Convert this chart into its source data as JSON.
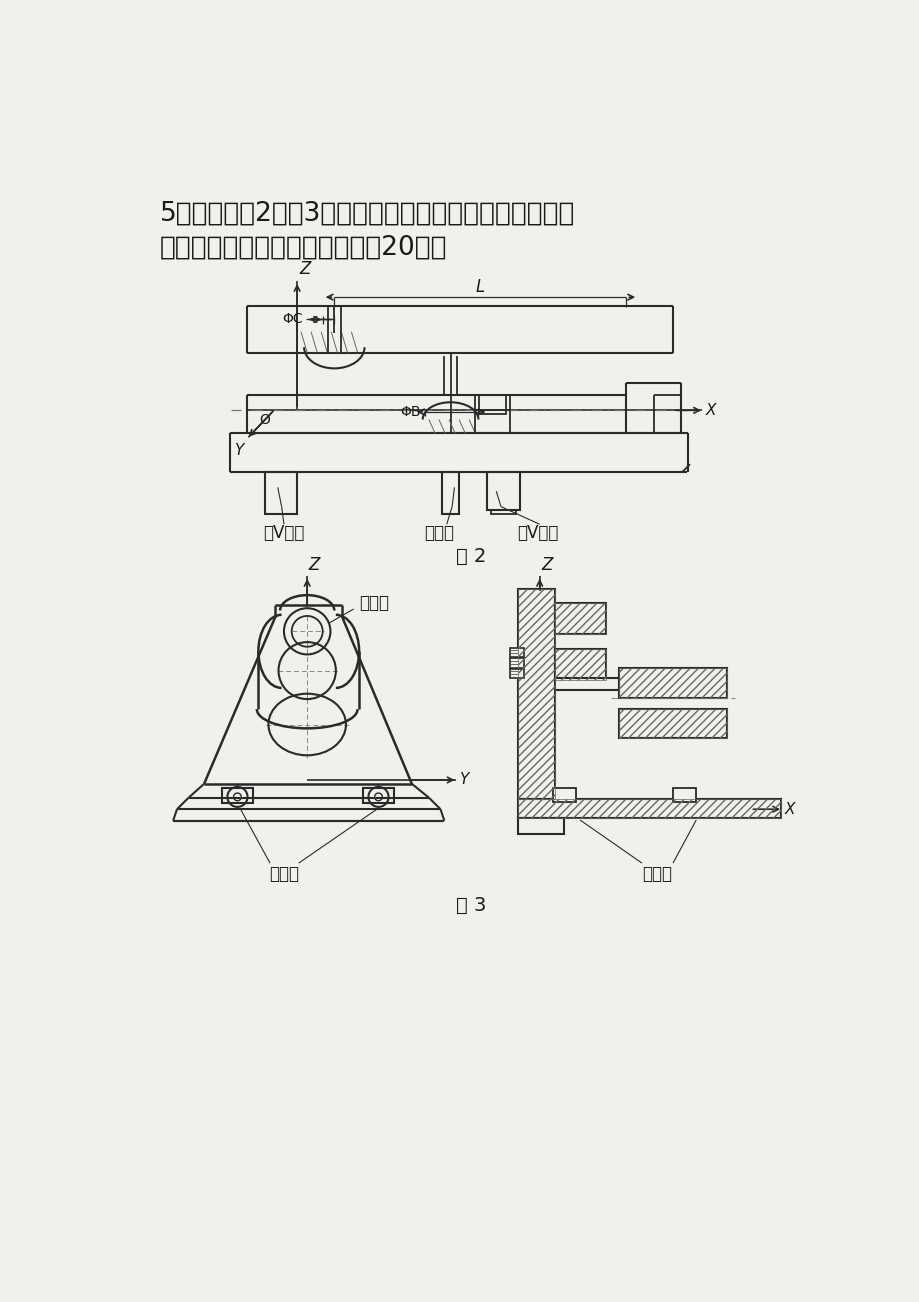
{
  "title_line1": "5．试确定图2、图3中各定位元件限制了工件哪几个自由",
  "title_line2": "度？分别属于哪种定位方式？（20分）",
  "fig2_caption": "图 2",
  "fig3_caption": "图 3",
  "label_short_v_left": "短V形块",
  "label_diamond_pin_fig2": "菱形销",
  "label_short_v_right": "短V形块",
  "label_diamond_pin_fig3": "菱形销",
  "label_support_nail": "支承钉",
  "label_support_plate": "支承板",
  "bg_color": "#f2f0ec",
  "line_color": "#2a2a2a",
  "text_color": "#1a1a1a"
}
